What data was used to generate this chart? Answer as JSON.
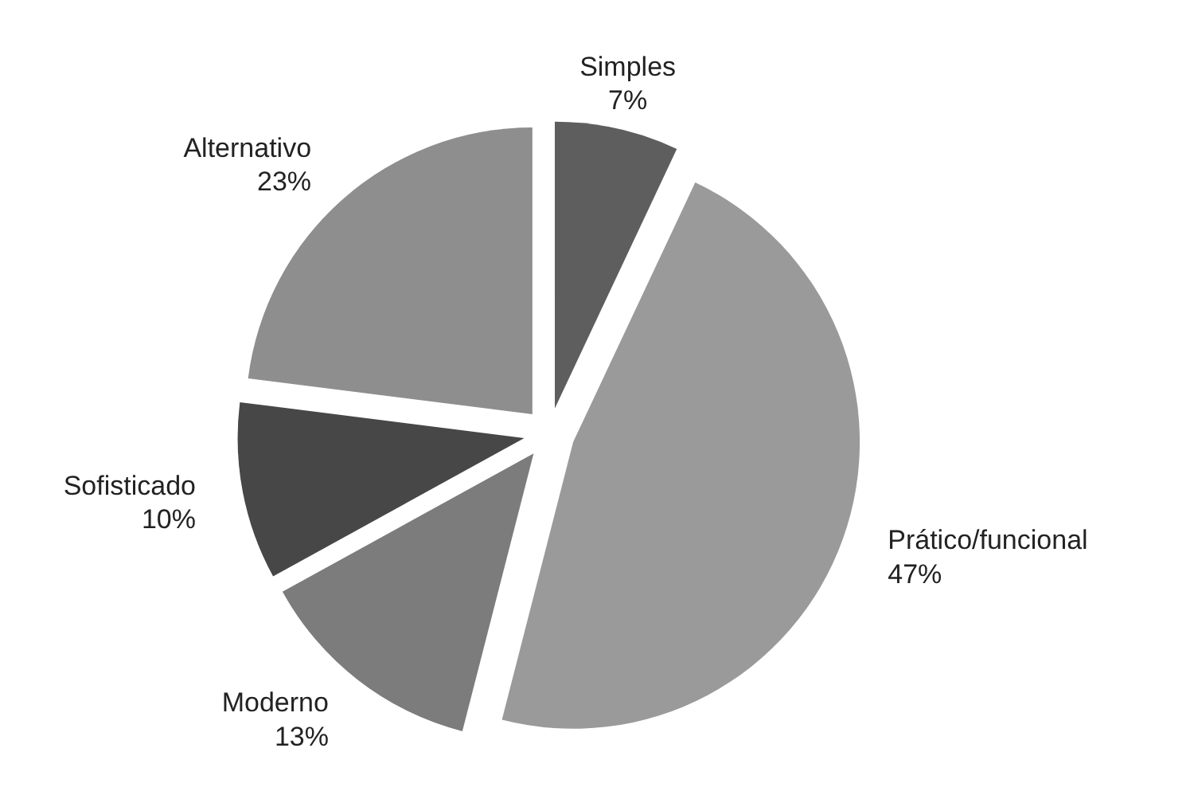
{
  "chart_data": {
    "type": "pie",
    "categories": [
      "Simples",
      "Prático/funcional",
      "Moderno",
      "Sofisticado",
      "Alternativo"
    ],
    "values": [
      7,
      47,
      13,
      10,
      23
    ],
    "value_labels": [
      "7%",
      "47%",
      "13%",
      "10%",
      "23%"
    ],
    "colors": [
      "#5e5e5e",
      "#9a9a9a",
      "#7c7c7c",
      "#474747",
      "#8e8e8e"
    ]
  }
}
